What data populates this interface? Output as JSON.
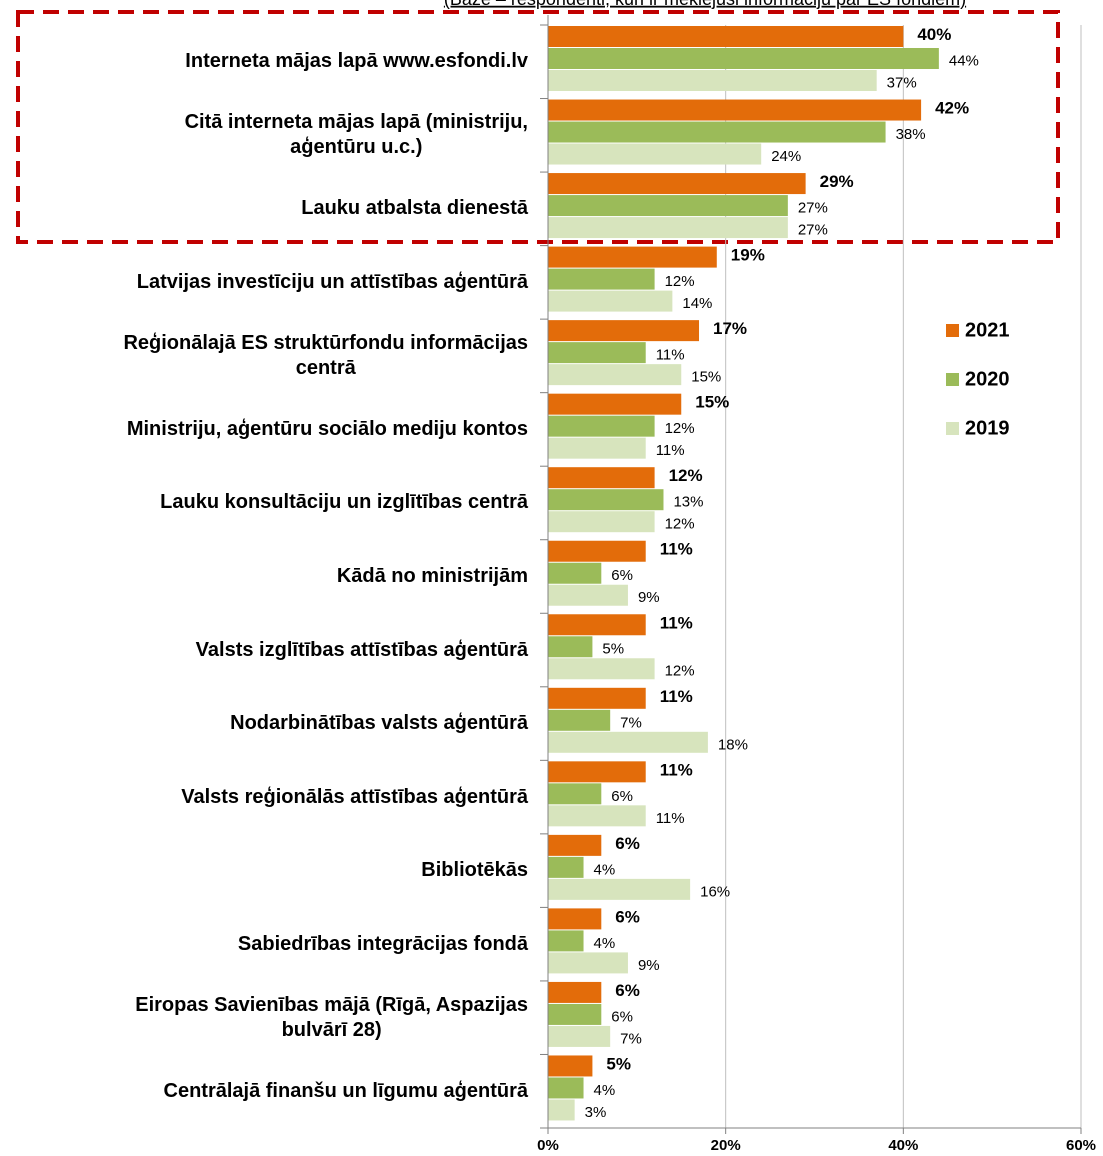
{
  "chart_data": {
    "type": "bar",
    "orientation": "horizontal",
    "subtitle": "(Bāze – respondenti, kuri ir meklējuši informāciju par ES fondiem)",
    "categories": [
      "Interneta mājas lapā www.esfondi.lv",
      "Citā interneta mājas lapā (ministriju,\naģentūru u.c.)",
      "Lauku atbalsta dienestā",
      "Latvijas investīciju un attīstības aģentūrā",
      "Reģionālajā ES struktūrfondu informācijas\ncentrā",
      "Ministriju, aģentūru sociālo mediju kontos",
      "Lauku konsultāciju un izglītības centrā",
      "Kādā no ministrijām",
      "Valsts izglītības attīstības aģentūrā",
      "Nodarbinātības valsts aģentūrā",
      "Valsts reģionālās attīstības aģentūrā",
      "Bibliotēkās",
      "Sabiedrības integrācijas fondā",
      "Eiropas Savienības mājā (Rīgā, Aspazijas\nbulvārī 28)",
      "Centrālajā finanšu un līgumu aģentūrā"
    ],
    "series": [
      {
        "name": "2021",
        "color": "#e36c0a",
        "values": [
          40,
          42,
          29,
          19,
          17,
          15,
          12,
          11,
          11,
          11,
          11,
          6,
          6,
          6,
          5
        ],
        "value_labels": [
          "40%",
          "42%",
          "29%",
          "19%",
          "17%",
          "15%",
          "12%",
          "11%",
          "11%",
          "11%",
          "11%",
          "6%",
          "6%",
          "6%",
          "5%"
        ]
      },
      {
        "name": "2020",
        "color": "#9bbb59",
        "values": [
          44,
          38,
          27,
          12,
          11,
          12,
          13,
          6,
          5,
          7,
          6,
          4,
          4,
          6,
          4
        ],
        "value_labels": [
          "44%",
          "38%",
          "27%",
          "12%",
          "11%",
          "12%",
          "13%",
          "6%",
          "5%",
          "7%",
          "6%",
          "4%",
          "4%",
          "6%",
          "4%"
        ]
      },
      {
        "name": "2019",
        "color": "#d7e4bd",
        "values": [
          37,
          24,
          27,
          14,
          15,
          11,
          12,
          9,
          12,
          18,
          11,
          16,
          9,
          7,
          3
        ],
        "value_labels": [
          "37%",
          "24%",
          "27%",
          "14%",
          "15%",
          "11%",
          "12%",
          "9%",
          "12%",
          "18%",
          "11%",
          "16%",
          "9%",
          "7%",
          "3%"
        ]
      }
    ],
    "xlim": [
      0,
      60
    ],
    "xticks": [
      {
        "value": 0,
        "label": "0%"
      },
      {
        "value": 20,
        "label": "20%"
      },
      {
        "value": 40,
        "label": "40%"
      },
      {
        "value": 60,
        "label": "60%"
      }
    ],
    "grid": true,
    "legend": "right"
  }
}
